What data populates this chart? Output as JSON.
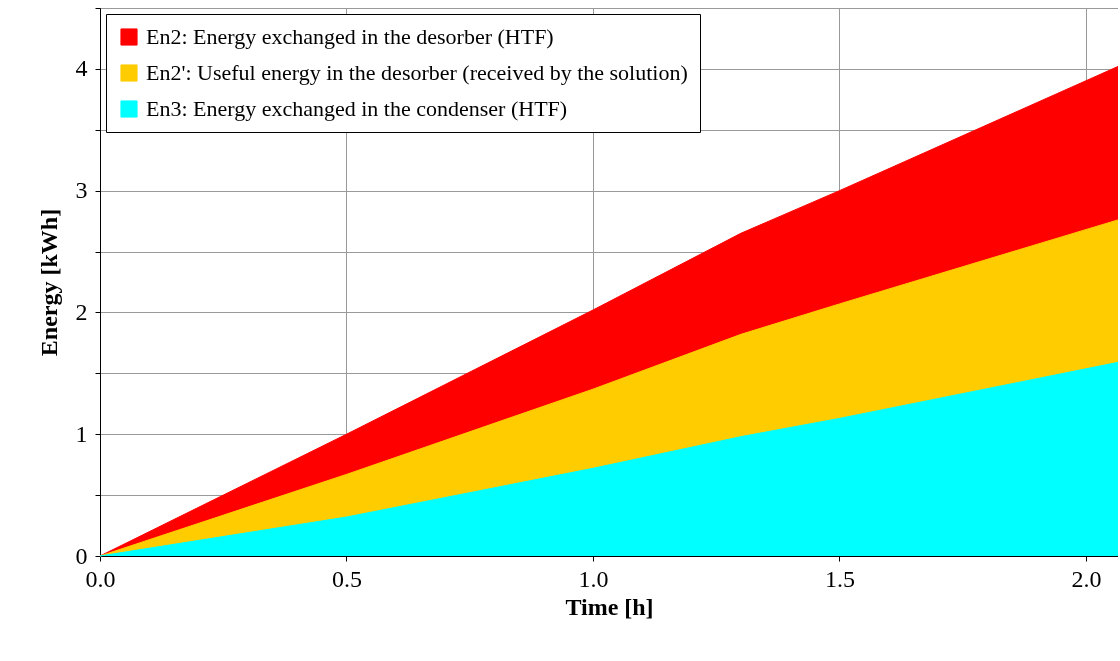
{
  "chart_data": {
    "type": "area",
    "xlabel": "Time [h]",
    "ylabel": "Energy [kWh]",
    "xlim": [
      0,
      2.065
    ],
    "ylim": [
      0,
      4.5
    ],
    "xticks": [
      {
        "value": 0,
        "label": "0.0"
      },
      {
        "value": 0.5,
        "label": "0.5"
      },
      {
        "value": 1,
        "label": "1.0"
      },
      {
        "value": 1.5,
        "label": "1.5"
      },
      {
        "value": 2,
        "label": "2.0"
      }
    ],
    "yticks": [
      0,
      {
        "value": 0.5,
        "label": null
      },
      1,
      {
        "value": 1.5,
        "label": null
      },
      2,
      {
        "value": 2.5,
        "label": null
      },
      3,
      {
        "value": 3.5,
        "label": null
      },
      4,
      {
        "value": 4.5,
        "label": null
      }
    ],
    "grid": true,
    "legend": "top left",
    "series": [
      {
        "name": "En2: Energy exchanged in the desorber (HTF)",
        "color": "#ff0000",
        "x": [
          0,
          0.5,
          1,
          1.3,
          1.5,
          2.065
        ],
        "values": [
          0,
          1.0,
          2.02,
          2.65,
          3.0,
          4.02
        ]
      },
      {
        "name": "En2': Useful energy in the desorber (received by the solution)",
        "color": "#ffcc00",
        "x": [
          0,
          0.5,
          1,
          1.3,
          1.5,
          2.065
        ],
        "values": [
          0,
          0.67,
          1.37,
          1.82,
          2.07,
          2.76
        ]
      },
      {
        "name": "En3: Energy exchanged in the condenser (HTF)",
        "color": "#00ffff",
        "x": [
          0,
          0.5,
          1,
          1.3,
          1.5,
          2.065
        ],
        "values": [
          0,
          0.32,
          0.72,
          0.98,
          1.13,
          1.59
        ]
      }
    ]
  }
}
